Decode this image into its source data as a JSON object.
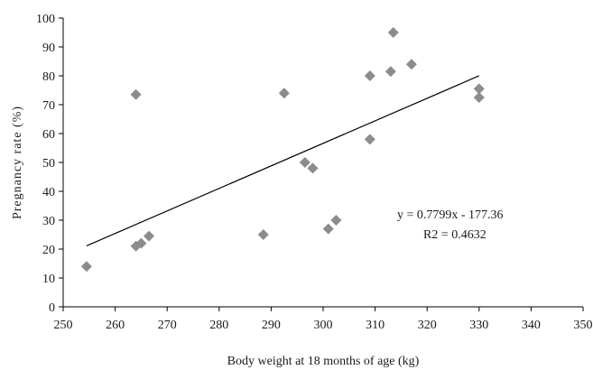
{
  "chart_data": {
    "type": "scatter",
    "title": "",
    "xlabel": "Body weight at 18 months of age (kg)",
    "ylabel": "Pregnancy rate (%)",
    "xlim": [
      250,
      350
    ],
    "ylim": [
      0,
      100
    ],
    "xticks": [
      "250",
      "260",
      "270",
      "280",
      "290",
      "300",
      "310",
      "320",
      "330",
      "340",
      "350"
    ],
    "yticks": [
      "0",
      "10",
      "20",
      "30",
      "40",
      "50",
      "60",
      "70",
      "80",
      "90",
      "100"
    ],
    "grid": false,
    "marker_color": "#8c8c8c",
    "points": [
      {
        "x": 254.5,
        "y": 14
      },
      {
        "x": 264,
        "y": 73.5
      },
      {
        "x": 264,
        "y": 21
      },
      {
        "x": 265,
        "y": 22
      },
      {
        "x": 266.5,
        "y": 24.5
      },
      {
        "x": 288.5,
        "y": 25
      },
      {
        "x": 292.5,
        "y": 74
      },
      {
        "x": 296.5,
        "y": 50
      },
      {
        "x": 298,
        "y": 48
      },
      {
        "x": 301,
        "y": 27
      },
      {
        "x": 302.5,
        "y": 30
      },
      {
        "x": 309,
        "y": 80
      },
      {
        "x": 309,
        "y": 58
      },
      {
        "x": 313,
        "y": 81.5
      },
      {
        "x": 313.5,
        "y": 95
      },
      {
        "x": 317,
        "y": 84
      },
      {
        "x": 330,
        "y": 75.5
      },
      {
        "x": 330,
        "y": 72.5
      }
    ],
    "trendline": {
      "slope": 0.7799,
      "intercept": -177.36,
      "x_range": [
        254.5,
        330
      ],
      "equation": "y = 0.7799x - 177.36",
      "r2_text": "R2 = 0.4632"
    }
  }
}
